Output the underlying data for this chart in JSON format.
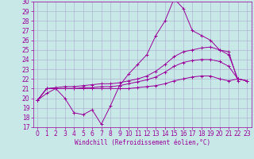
{
  "title": "",
  "xlabel": "Windchill (Refroidissement éolien,°C)",
  "ylabel": "",
  "background_color": "#c8e8e8",
  "grid_color": "#aaaacc",
  "line_color": "#990099",
  "xlim": [
    -0.5,
    23.5
  ],
  "ylim": [
    17,
    30
  ],
  "yticks": [
    17,
    18,
    19,
    20,
    21,
    22,
    23,
    24,
    25,
    26,
    27,
    28,
    29,
    30
  ],
  "xticks": [
    0,
    1,
    2,
    3,
    4,
    5,
    6,
    7,
    8,
    9,
    10,
    11,
    12,
    13,
    14,
    15,
    16,
    17,
    18,
    19,
    20,
    21,
    22,
    23
  ],
  "line1_x": [
    0,
    1,
    2,
    3,
    4,
    5,
    6,
    7,
    8,
    9,
    10,
    11,
    12,
    13,
    14,
    15,
    16,
    17,
    18,
    19,
    20,
    21,
    22
  ],
  "line1_y": [
    19.8,
    21.0,
    21.0,
    20.0,
    18.5,
    18.3,
    18.8,
    17.3,
    19.2,
    21.3,
    22.5,
    23.5,
    24.5,
    26.5,
    28.0,
    30.3,
    29.3,
    27.0,
    26.5,
    26.0,
    25.0,
    24.8,
    21.8
  ],
  "line2_x": [
    0,
    1,
    2,
    3,
    4,
    5,
    6,
    7,
    8,
    9,
    10,
    11,
    12,
    13,
    14,
    15,
    16,
    17,
    18,
    19,
    20,
    21,
    22,
    23
  ],
  "line2_y": [
    19.8,
    21.0,
    21.1,
    21.2,
    21.2,
    21.3,
    21.4,
    21.5,
    21.5,
    21.6,
    21.8,
    22.0,
    22.3,
    22.8,
    23.5,
    24.3,
    24.8,
    25.0,
    25.2,
    25.3,
    25.0,
    24.5,
    22.0,
    21.8
  ],
  "line3_x": [
    0,
    1,
    2,
    3,
    4,
    5,
    6,
    7,
    8,
    9,
    10,
    11,
    12,
    13,
    14,
    15,
    16,
    17,
    18,
    19,
    20,
    21,
    22,
    23
  ],
  "line3_y": [
    19.8,
    21.0,
    21.0,
    21.0,
    21.0,
    21.1,
    21.1,
    21.2,
    21.2,
    21.3,
    21.5,
    21.7,
    21.9,
    22.2,
    22.7,
    23.3,
    23.7,
    23.9,
    24.0,
    24.0,
    23.8,
    23.3,
    22.0,
    21.8
  ],
  "line4_x": [
    0,
    1,
    2,
    3,
    4,
    5,
    6,
    7,
    8,
    9,
    10,
    11,
    12,
    13,
    14,
    15,
    16,
    17,
    18,
    19,
    20,
    21,
    22,
    23
  ],
  "line4_y": [
    19.8,
    20.5,
    21.0,
    21.0,
    21.0,
    21.0,
    21.0,
    21.0,
    21.0,
    21.0,
    21.0,
    21.1,
    21.2,
    21.3,
    21.5,
    21.8,
    22.0,
    22.2,
    22.3,
    22.3,
    22.0,
    21.8,
    22.0,
    21.8
  ],
  "tick_fontsize": 5.5,
  "xlabel_fontsize": 5.5
}
